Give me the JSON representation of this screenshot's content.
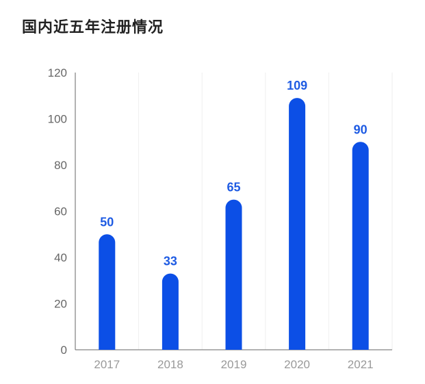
{
  "title": "国内近五年注册情况",
  "colors": {
    "bar": "#0c4fe6",
    "label": "#1e5be3",
    "axis": "#666666",
    "grid": "#eeeeee"
  },
  "chart_data": {
    "type": "bar",
    "title": "国内近五年注册情况",
    "xlabel": "",
    "ylabel": "",
    "categories": [
      "2017",
      "2018",
      "2019",
      "2020",
      "2021"
    ],
    "values": [
      50,
      33,
      65,
      109,
      90
    ],
    "data_labels": [
      "50",
      "33",
      "65",
      "109",
      "90"
    ],
    "ylim": [
      0,
      120
    ],
    "yticks": [
      0,
      20,
      40,
      60,
      80,
      100,
      120
    ],
    "grid": "vertical, light",
    "legend": "none"
  }
}
